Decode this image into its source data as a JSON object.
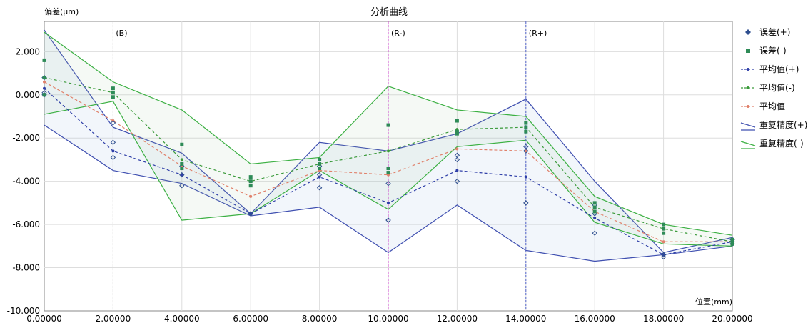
{
  "chart_data": {
    "type": "line",
    "title": "分析曲线",
    "ylabel": "偏差(μm)",
    "xlabel": "位置(mm)",
    "xlim": [
      0,
      20
    ],
    "ylim": [
      -10,
      3.4
    ],
    "x_ticks": [
      "0.00000",
      "2.00000",
      "4.00000",
      "6.00000",
      "8.00000",
      "10.00000",
      "12.00000",
      "14.00000",
      "16.00000",
      "18.00000",
      "20.00000"
    ],
    "y_ticks": [
      "-10.000",
      "-8.000",
      "-6.000",
      "-4.000",
      "-2.000",
      "0.000",
      "2.000"
    ],
    "grid": true,
    "legend_position": "right",
    "markers": [
      {
        "label": "(B)",
        "x": 2,
        "color": "#bbbbbb"
      },
      {
        "label": "(R-)",
        "x": 10,
        "color": "#cc44cc"
      },
      {
        "label": "(R+)",
        "x": 14,
        "color": "#5566cc"
      }
    ],
    "x": [
      0,
      2,
      4,
      6,
      8,
      10,
      12,
      14,
      16,
      18,
      20
    ],
    "series": [
      {
        "name": "误差(+)",
        "kind": "points",
        "color": "#2f4f8f",
        "values": [
          [
            0.8,
            -2.2,
            -3.3,
            -5.5,
            -3.3,
            -4.1,
            -2.8,
            -2.4,
            -5.1,
            -7.4,
            -6.7
          ],
          [
            0.0,
            -2.9,
            -3.7,
            -5.5,
            -3.7,
            -5.8,
            -3.0,
            -2.6,
            -5.5,
            -7.4,
            -6.8
          ],
          [
            0.1,
            -1.3,
            -4.2,
            -5.5,
            -4.3,
            -5.8,
            -4.0,
            -5.0,
            -6.4,
            -7.5,
            -6.9
          ]
        ]
      },
      {
        "name": "误差(-)",
        "kind": "squares",
        "color": "#2e8b57",
        "values": [
          [
            1.6,
            0.3,
            -2.3,
            -3.8,
            -3.0,
            -1.4,
            -1.2,
            -1.3,
            -5.0,
            -6.0,
            -6.7
          ],
          [
            0.8,
            0.1,
            -3.2,
            -4.0,
            -3.2,
            -3.4,
            -1.7,
            -1.5,
            -5.2,
            -6.2,
            -6.8
          ],
          [
            0.0,
            -0.1,
            -3.4,
            -4.2,
            -3.4,
            -3.6,
            -1.8,
            -1.7,
            -5.4,
            -6.4,
            -6.9
          ]
        ]
      },
      {
        "name": "平均值(+)",
        "kind": "dashed",
        "color": "#2f3fa8",
        "values": [
          0.3,
          -2.6,
          -3.7,
          -5.5,
          -3.8,
          -5.0,
          -3.5,
          -3.8,
          -5.7,
          -7.4,
          -6.8
        ]
      },
      {
        "name": "平均值(-)",
        "kind": "dashed",
        "color": "#3a9a3a",
        "values": [
          0.8,
          0.1,
          -3.0,
          -4.0,
          -3.2,
          -2.6,
          -1.6,
          -1.5,
          -5.2,
          -6.2,
          -6.8
        ]
      },
      {
        "name": "平均值",
        "kind": "dashed",
        "color": "#e0806a",
        "values": [
          0.6,
          -1.2,
          -3.3,
          -4.7,
          -3.5,
          -3.7,
          -2.5,
          -2.6,
          -5.4,
          -6.8,
          -6.8
        ]
      },
      {
        "name": "重复精度(+)",
        "kind": "band",
        "color": "#3f4fb0",
        "upper": [
          3.0,
          -1.5,
          -2.7,
          -5.5,
          -2.2,
          -2.6,
          -1.8,
          -0.2,
          -4.0,
          -7.3,
          -6.6
        ],
        "lower": [
          -1.4,
          -3.5,
          -4.1,
          -5.6,
          -5.2,
          -7.3,
          -5.1,
          -7.2,
          -7.7,
          -7.4,
          -7.0
        ]
      },
      {
        "name": "重复精度(-)",
        "kind": "band",
        "color": "#3cb043",
        "upper": [
          2.9,
          0.6,
          -0.7,
          -3.2,
          -2.9,
          0.4,
          -0.7,
          -1.0,
          -4.7,
          -6.0,
          -6.5
        ],
        "lower": [
          -0.9,
          -0.3,
          -5.8,
          -5.5,
          -3.5,
          -5.3,
          -2.4,
          -2.1,
          -5.9,
          -6.9,
          -7.0
        ]
      }
    ]
  }
}
